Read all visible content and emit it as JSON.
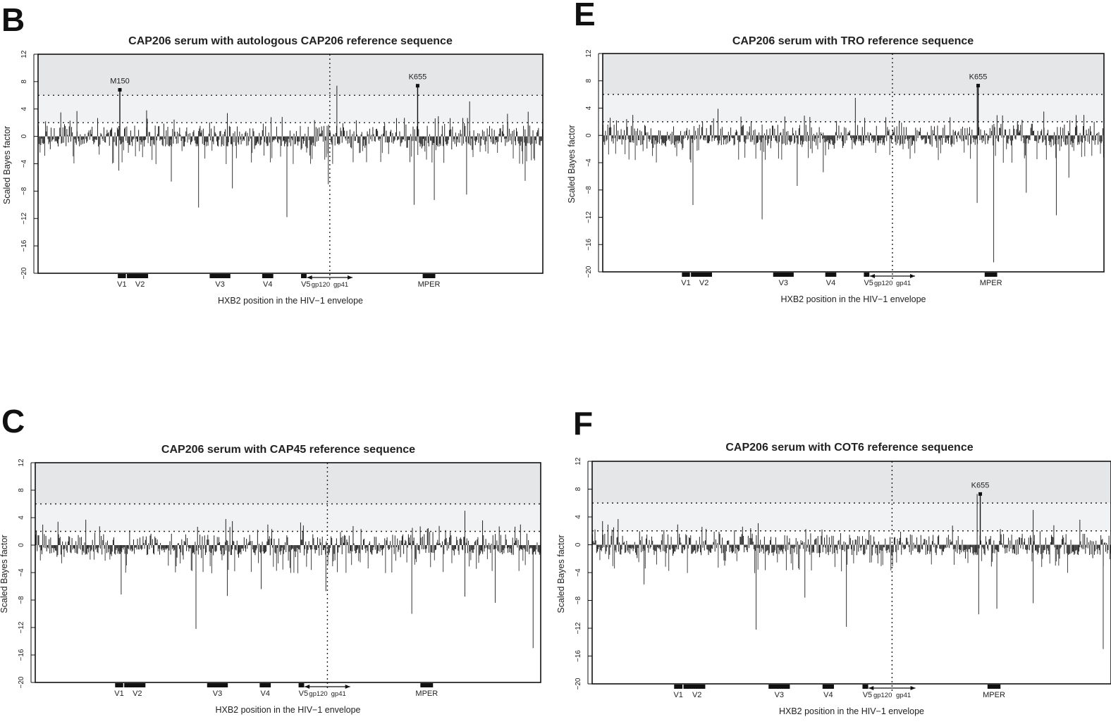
{
  "chart_data": [
    {
      "panel": "B",
      "type": "bar",
      "title": "CAP206 serum with autologous CAP206 reference sequence",
      "xlabel": "HXB2 position in the HIV−1 envelope",
      "ylabel": "Scaled Bayes factor",
      "ylim": [
        -20,
        12
      ],
      "yticks": [
        "12",
        "8",
        "4",
        "0",
        "−4",
        "−8",
        "−12",
        "−16",
        "−20"
      ],
      "thresholds": [
        2,
        6
      ],
      "regions": [
        "V1",
        "V2",
        "V3",
        "V4",
        "V5",
        "MPER"
      ],
      "gp_labels": [
        "gp120",
        "gp41"
      ],
      "annotations": [
        {
          "label": "M150",
          "value": 6.8
        },
        {
          "label": "K655",
          "value": 7.4
        }
      ],
      "peaks_positive": [
        3.5,
        3.7,
        6.8,
        3.8,
        3.4,
        7.4,
        5.1,
        3.3,
        3.6
      ],
      "peaks_negative": [
        -5.0,
        -6.6,
        -10.4,
        -7.6,
        -11.8,
        -7.0,
        -10.0,
        -9.3,
        -8.5,
        -6.5
      ]
    },
    {
      "panel": "E",
      "type": "bar",
      "title": "CAP206 serum with TRO reference sequence",
      "xlabel": "HXB2 position in the HIV−1 envelope",
      "ylabel": "Scaled Bayes factor",
      "ylim": [
        -20,
        12
      ],
      "yticks": [
        "12",
        "8",
        "4",
        "0",
        "−4",
        "−8",
        "−12",
        "−16",
        "−20"
      ],
      "thresholds": [
        2,
        6
      ],
      "regions": [
        "V1",
        "V2",
        "V3",
        "V4",
        "V5",
        "MPER"
      ],
      "gp_labels": [
        "gp120",
        "gp41"
      ],
      "annotations": [
        {
          "label": "K655",
          "value": 7.3
        }
      ],
      "peaks_positive": [
        3.0,
        3.9,
        5.5,
        7.3,
        3.5,
        3.0
      ],
      "peaks_negative": [
        -10.2,
        -12.3,
        -7.4,
        -5.4,
        -9.9,
        -18.6,
        -8.4,
        -11.7,
        -6.2
      ]
    },
    {
      "panel": "C",
      "type": "bar",
      "title": "CAP206 serum with CAP45 reference sequence",
      "xlabel": "HXB2 position in the HIV−1 envelope",
      "ylabel": "Scaled Bayes factor",
      "ylim": [
        -20,
        12
      ],
      "yticks": [
        "12",
        "8",
        "4",
        "0",
        "−4",
        "−8",
        "−12",
        "−16",
        "−20"
      ],
      "thresholds": [
        2,
        6
      ],
      "regions": [
        "V1",
        "V2",
        "V3",
        "V4",
        "V5",
        "MPER"
      ],
      "gp_labels": [
        "gp120",
        "gp41"
      ],
      "annotations": [],
      "peaks_positive": [
        3.4,
        3.7,
        3.8,
        3.5,
        3.3,
        5.0,
        3.6,
        3.0
      ],
      "peaks_negative": [
        -7.2,
        -12.2,
        -7.4,
        -6.4,
        -6.7,
        -10.0,
        -7.5,
        -8.4,
        -15.0
      ]
    },
    {
      "panel": "F",
      "type": "bar",
      "title": "CAP206 serum with COT6 reference sequence",
      "xlabel": "HXB2 position in the HIV−1 envelope",
      "ylabel": "Scaled Bayes factor",
      "ylim": [
        -20,
        12
      ],
      "yticks": [
        "12",
        "8",
        "4",
        "0",
        "−4",
        "−8",
        "−12",
        "−16",
        "−20"
      ],
      "thresholds": [
        2,
        6
      ],
      "regions": [
        "V1",
        "V2",
        "V3",
        "V4",
        "V5",
        "MPER"
      ],
      "gp_labels": [
        "gp120",
        "gp41"
      ],
      "annotations": [
        {
          "label": "K655",
          "value": 7.3
        }
      ],
      "peaks_positive": [
        3.4,
        3.7,
        3.1,
        7.3,
        5.0,
        3.6
      ],
      "peaks_negative": [
        -5.7,
        -12.2,
        -7.6,
        -11.8,
        -10.0,
        -9.2,
        -8.4,
        -15.0
      ]
    }
  ]
}
